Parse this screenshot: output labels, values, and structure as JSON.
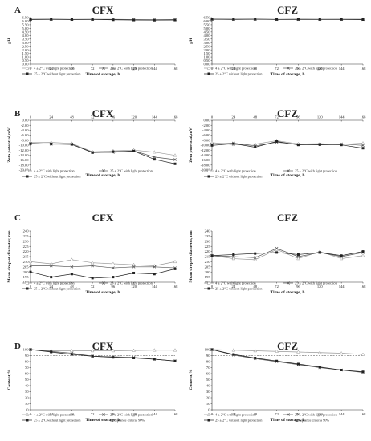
{
  "figure": {
    "background": "#ffffff",
    "line_color": "#333333",
    "reference_color": "#444444"
  },
  "series_styles": [
    {
      "line": "#999999",
      "marker": "triangle",
      "fill": "#ffffff"
    },
    {
      "line": "#555555",
      "marker": "cross",
      "fill": "#555555"
    },
    {
      "line": "#222222",
      "marker": "square",
      "fill": "#222222"
    }
  ],
  "chart_data": [
    {
      "type": "line",
      "panel_letter": "A",
      "title": "CFX",
      "xlabel": "Time of storage, h",
      "ylabel": "pH",
      "x": [
        0,
        24,
        48,
        72,
        96,
        120,
        144,
        168
      ],
      "xlim": [
        0,
        168
      ],
      "ylim": [
        0,
        6.5
      ],
      "yticks": [
        0.0,
        0.5,
        1.0,
        1.5,
        2.0,
        2.5,
        3.0,
        3.5,
        4.0,
        4.5,
        5.0,
        5.5,
        6.0,
        6.5
      ],
      "yformat": 2,
      "x_axis_position": "bottom",
      "series": [
        {
          "name": "4 ± 2°C with light protection",
          "values": [
            6.27,
            6.27,
            6.25,
            6.26,
            6.26,
            6.22,
            6.22,
            6.23
          ]
        },
        {
          "name": "25 ± 2°C with light protection",
          "values": [
            6.25,
            6.26,
            6.24,
            6.25,
            6.22,
            6.19,
            6.17,
            6.19
          ]
        },
        {
          "name": "25 ± 2°C without light protection",
          "values": [
            6.23,
            6.25,
            6.23,
            6.24,
            6.19,
            6.16,
            6.14,
            6.16
          ]
        }
      ],
      "legend_position": "bottom"
    },
    {
      "type": "line",
      "title": "CFZ",
      "xlabel": "Time of storage, h",
      "ylabel": "pH",
      "x": [
        0,
        24,
        48,
        72,
        96,
        120,
        144,
        168
      ],
      "xlim": [
        0,
        168
      ],
      "ylim": [
        0,
        6.5
      ],
      "yticks": [
        0.0,
        0.5,
        1.0,
        1.5,
        2.0,
        2.5,
        3.0,
        3.5,
        4.0,
        4.5,
        5.0,
        5.5,
        6.0,
        6.5
      ],
      "yformat": 2,
      "x_axis_position": "bottom",
      "series": [
        {
          "name": "4 ± 2°C with light protection",
          "values": [
            6.28,
            6.26,
            6.28,
            6.25,
            6.26,
            6.27,
            6.28,
            6.28
          ]
        },
        {
          "name": "25 ± 2°C with light protection",
          "values": [
            6.27,
            6.25,
            6.27,
            6.24,
            6.25,
            6.25,
            6.25,
            6.23
          ]
        },
        {
          "name": "25 ± 2°C without light protection",
          "values": [
            6.26,
            6.25,
            6.26,
            6.24,
            6.25,
            6.24,
            6.24,
            6.22
          ]
        }
      ],
      "legend_position": "bottom"
    },
    {
      "type": "line",
      "panel_letter": "B",
      "title": "CFX",
      "xlabel": "Time of storage, h",
      "ylabel": "Zeta potential,mV",
      "x": [
        0,
        24,
        48,
        72,
        96,
        120,
        144,
        168
      ],
      "xlim": [
        0,
        168
      ],
      "ylim": [
        -20,
        0
      ],
      "yticks": [
        0.0,
        -2.0,
        -4.0,
        -6.0,
        -8.0,
        -10.0,
        -12.0,
        -14.0,
        -16.0,
        -18.0,
        -20.0
      ],
      "yformat": 2,
      "x_axis_position": "top",
      "series": [
        {
          "name": "4 ± 2°C with light protection",
          "values": [
            -9.0,
            -8.9,
            -9.3,
            -12.7,
            -12.3,
            -12.0,
            -12.8,
            -14.1
          ]
        },
        {
          "name": "25 ± 2°C with light protection",
          "values": [
            -9.3,
            -9.6,
            -9.6,
            -12.9,
            -12.9,
            -12.3,
            -14.8,
            -15.8
          ]
        },
        {
          "name": "25 ± 2°C without light protection",
          "values": [
            -9.4,
            -9.5,
            -9.7,
            -13.0,
            -12.6,
            -12.4,
            -15.7,
            -17.5
          ]
        }
      ],
      "legend_position": "bottom"
    },
    {
      "type": "line",
      "title": "CFZ",
      "xlabel": "Time of storage, h",
      "ylabel": "Zeta potential,mV",
      "x": [
        0,
        24,
        48,
        72,
        96,
        120,
        144,
        168
      ],
      "xlim": [
        0,
        168
      ],
      "ylim": [
        -20,
        0
      ],
      "yticks": [
        0.0,
        -2.0,
        -4.0,
        -6.0,
        -8.0,
        -10.0,
        -12.0,
        -14.0,
        -16.0,
        -18.0,
        -20.0
      ],
      "yformat": 2,
      "x_axis_position": "top",
      "series": [
        {
          "name": "4 ± 2°C with light protection",
          "values": [
            -9.0,
            -9.8,
            -9.6,
            -8.2,
            -9.5,
            -9.4,
            -9.7,
            -9.2
          ]
        },
        {
          "name": "25 ± 2°C with light protection",
          "values": [
            -9.6,
            -9.2,
            -10.3,
            -8.8,
            -9.7,
            -9.6,
            -9.5,
            -10.1
          ]
        },
        {
          "name": "25 ± 2°C without light protection",
          "values": [
            -10.1,
            -9.4,
            -10.8,
            -8.5,
            -9.9,
            -9.8,
            -9.9,
            -11.2
          ]
        }
      ],
      "legend_position": "bottom"
    },
    {
      "type": "line",
      "panel_letter": "C",
      "title": "CFX",
      "xlabel": "Time of storage, h",
      "ylabel": "Mean droplet diameter, nm",
      "x": [
        0,
        24,
        48,
        72,
        96,
        120,
        144,
        168
      ],
      "xlim": [
        0,
        168
      ],
      "ylim": [
        190,
        240
      ],
      "yticks": [
        190,
        195,
        200,
        205,
        210,
        215,
        220,
        225,
        230,
        235,
        240
      ],
      "yformat": 0,
      "x_axis_position": "bottom",
      "series": [
        {
          "name": "4 ± 2°C with light protection",
          "values": [
            210,
            208,
            212,
            209,
            208,
            207,
            206,
            210
          ]
        },
        {
          "name": "25 ± 2°C with light protection",
          "values": [
            206,
            206,
            205,
            206,
            204,
            205,
            205,
            204
          ]
        },
        {
          "name": "25 ± 2°C without light protection",
          "values": [
            200,
            195,
            198,
            194,
            195,
            199,
            198,
            203
          ]
        }
      ],
      "legend_position": "bottom"
    },
    {
      "type": "line",
      "title": "CFZ",
      "xlabel": "Time of storage, h",
      "ylabel": "Mean droplet diameter, nm",
      "x": [
        0,
        24,
        48,
        72,
        96,
        120,
        144,
        168
      ],
      "xlim": [
        0,
        168
      ],
      "ylim": [
        190,
        240
      ],
      "yticks": [
        190,
        195,
        200,
        205,
        210,
        215,
        220,
        225,
        230,
        235,
        240
      ],
      "yformat": 0,
      "x_axis_position": "bottom",
      "series": [
        {
          "name": "4 ± 2°C with light protection",
          "values": [
            216,
            213,
            212,
            222,
            213,
            220,
            213,
            216
          ]
        },
        {
          "name": "25 ± 2°C with light protection",
          "values": [
            216,
            215,
            214,
            223,
            215,
            219,
            215,
            219
          ]
        },
        {
          "name": "25 ± 2°C without light protection",
          "values": [
            216,
            217,
            218,
            219,
            217,
            219,
            216,
            220
          ]
        }
      ],
      "legend_position": "bottom"
    },
    {
      "type": "line",
      "panel_letter": "D",
      "title": "CFX",
      "xlabel": "Time of storage, h",
      "ylabel": "Content,%",
      "x": [
        0,
        24,
        48,
        72,
        96,
        120,
        144,
        168
      ],
      "xlim": [
        0,
        168
      ],
      "ylim": [
        0,
        100
      ],
      "yticks": [
        0,
        10,
        20,
        30,
        40,
        50,
        60,
        70,
        80,
        90,
        100
      ],
      "yformat": 0,
      "x_axis_position": "bottom",
      "reference_line": {
        "name": "Acceptance criteria 90%",
        "value": 90
      },
      "series": [
        {
          "name": "4 ± 2°C with light protection",
          "values": [
            100,
            98,
            98,
            98,
            98,
            98.5,
            99,
            99
          ]
        },
        {
          "name": "25 ± 2°C with light protection",
          "values": [
            100,
            97,
            94,
            89,
            88,
            87,
            84,
            81
          ]
        },
        {
          "name": "25 ± 2°C without light protection",
          "values": [
            100,
            96,
            92,
            89,
            87,
            86,
            84,
            81
          ]
        }
      ],
      "legend_position": "bottom"
    },
    {
      "type": "line",
      "title": "CFZ",
      "xlabel": "Time of storage, h",
      "ylabel": "Content,%",
      "x": [
        0,
        24,
        48,
        72,
        96,
        120,
        144,
        168
      ],
      "xlim": [
        0,
        168
      ],
      "ylim": [
        0,
        100
      ],
      "yticks": [
        0,
        10,
        20,
        30,
        40,
        50,
        60,
        70,
        80,
        90,
        100
      ],
      "yformat": 0,
      "x_axis_position": "bottom",
      "reference_line": {
        "name": "Acceptance criteria 90%",
        "value": 90
      },
      "series": [
        {
          "name": "4 ± 2°C with light protection",
          "values": [
            100,
            99,
            98,
            97,
            96,
            95,
            94,
            92
          ]
        },
        {
          "name": "25 ± 2°C with light protection",
          "values": [
            100,
            91,
            85,
            80,
            75,
            70,
            66,
            62
          ]
        },
        {
          "name": "25 ± 2°C without light protection",
          "values": [
            100,
            92,
            86,
            81,
            76,
            71,
            66,
            63
          ]
        }
      ],
      "legend_position": "bottom"
    }
  ]
}
